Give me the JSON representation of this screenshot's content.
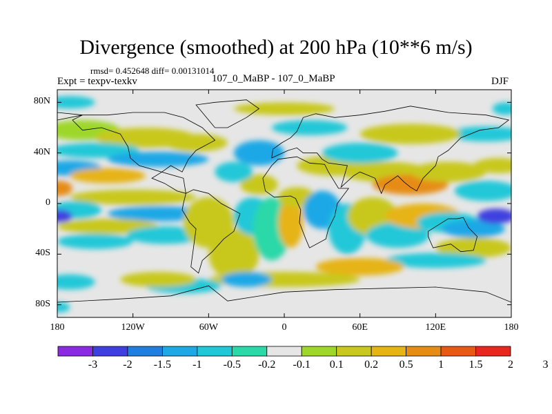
{
  "title": "Divergence (smoothed) at 200 hPa (10**6 m/s)",
  "stats": "rmsd= 0.452648 diff= 0.00131014",
  "experiment": "Expt = texpv-texkv",
  "experiment_names": "107_0_MaBP - 107_0_MaBP",
  "season": "DJF",
  "colors": {
    "neutral": "#e6e6e6",
    "scale": [
      "#8a2be2",
      "#3f3fe0",
      "#1f7fe0",
      "#1fa8e6",
      "#22c8d8",
      "#2bd8a8",
      "#e6e6e6",
      "#9ed72a",
      "#c8c81e",
      "#e6b414",
      "#e68c14",
      "#e65a14",
      "#e6281e"
    ]
  },
  "chart_data": {
    "type": "heatmap",
    "title": "Divergence (smoothed) at 200 hPa (10**6 m/s)",
    "x_ticks": [
      "180",
      "120W",
      "60W",
      "0",
      "60E",
      "120E",
      "180"
    ],
    "x_range": [
      -180,
      180
    ],
    "y_ticks": [
      "80N",
      "40N",
      "0",
      "40S",
      "80S"
    ],
    "y_range": [
      -90,
      90
    ],
    "colorbar_levels": [
      "-3",
      "-2",
      "-1.5",
      "-1",
      "-0.5",
      "-0.2",
      "-0.1",
      "0.1",
      "0.2",
      "0.5",
      "1",
      "1.5",
      "2",
      "3"
    ]
  }
}
